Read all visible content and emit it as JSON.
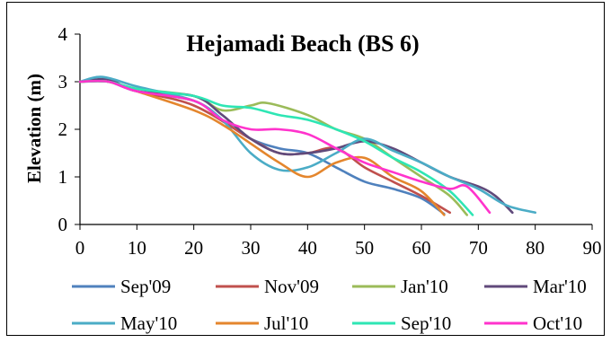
{
  "chart_data": {
    "type": "line",
    "title": "Hejamadi Beach (BS 6)",
    "xlabel": "",
    "ylabel": "Elevation (m)",
    "xlim": [
      0,
      90
    ],
    "ylim": [
      0,
      4
    ],
    "x_ticks": [
      "0",
      "10",
      "20",
      "30",
      "40",
      "50",
      "60",
      "70",
      "80",
      "90"
    ],
    "y_ticks": [
      "0",
      "1",
      "2",
      "3",
      "4"
    ],
    "grid": false,
    "legend": "bottom",
    "series": [
      {
        "name": "Sep'09",
        "color": "#4f81bd",
        "x": [
          0,
          5,
          10,
          20,
          25,
          30,
          35,
          40,
          45,
          50,
          55,
          60,
          64
        ],
        "y": [
          3.0,
          3.0,
          2.8,
          2.6,
          2.2,
          1.8,
          1.6,
          1.5,
          1.2,
          0.9,
          0.75,
          0.55,
          0.22
        ]
      },
      {
        "name": "Nov'09",
        "color": "#c0504d",
        "x": [
          0,
          5,
          10,
          20,
          30,
          35,
          40,
          45,
          50,
          55,
          60,
          65
        ],
        "y": [
          3.0,
          3.0,
          2.8,
          2.5,
          1.8,
          1.5,
          1.5,
          1.6,
          1.2,
          0.9,
          0.6,
          0.25
        ]
      },
      {
        "name": "Jan'10",
        "color": "#9bbb59",
        "x": [
          0,
          5,
          10,
          20,
          25,
          30,
          33,
          40,
          45,
          50,
          55,
          60,
          65,
          68
        ],
        "y": [
          3.0,
          3.0,
          2.85,
          2.7,
          2.4,
          2.5,
          2.55,
          2.3,
          2.0,
          1.8,
          1.4,
          1.0,
          0.6,
          0.2
        ]
      },
      {
        "name": "Mar'10",
        "color": "#604a7b",
        "x": [
          0,
          5,
          10,
          20,
          25,
          30,
          35,
          40,
          45,
          50,
          55,
          60,
          65,
          70,
          73,
          76
        ],
        "y": [
          3.0,
          3.05,
          2.8,
          2.7,
          2.3,
          1.8,
          1.5,
          1.5,
          1.6,
          1.75,
          1.6,
          1.3,
          1.0,
          0.8,
          0.6,
          0.25
        ]
      },
      {
        "name": "May'10",
        "color": "#4bacc6",
        "x": [
          0,
          4,
          10,
          20,
          25,
          30,
          35,
          40,
          45,
          50,
          55,
          60,
          65,
          70,
          75,
          80
        ],
        "y": [
          3.0,
          3.1,
          2.9,
          2.6,
          2.2,
          1.5,
          1.15,
          1.2,
          1.5,
          1.8,
          1.55,
          1.3,
          1.0,
          0.75,
          0.4,
          0.25
        ]
      },
      {
        "name": "Jul'10",
        "color": "#e4862d",
        "x": [
          0,
          5,
          10,
          20,
          25,
          30,
          35,
          40,
          45,
          50,
          55,
          60,
          64
        ],
        "y": [
          3.0,
          3.0,
          2.8,
          2.4,
          2.1,
          1.7,
          1.3,
          1.0,
          1.3,
          1.4,
          1.0,
          0.7,
          0.2
        ]
      },
      {
        "name": "Sep'10",
        "color": "#2ee6b4",
        "x": [
          0,
          5,
          10,
          20,
          25,
          30,
          35,
          40,
          45,
          50,
          55,
          60,
          65,
          69
        ],
        "y": [
          3.0,
          3.0,
          2.85,
          2.7,
          2.5,
          2.45,
          2.3,
          2.2,
          2.0,
          1.75,
          1.4,
          1.1,
          0.7,
          0.2
        ]
      },
      {
        "name": "Oct'10",
        "color": "#ff33cc",
        "x": [
          0,
          5,
          10,
          20,
          25,
          30,
          35,
          40,
          45,
          50,
          55,
          60,
          65,
          68,
          72
        ],
        "y": [
          3.0,
          3.0,
          2.8,
          2.6,
          2.2,
          2.0,
          2.0,
          1.9,
          1.6,
          1.3,
          1.1,
          0.9,
          0.75,
          0.8,
          0.25
        ]
      }
    ]
  }
}
